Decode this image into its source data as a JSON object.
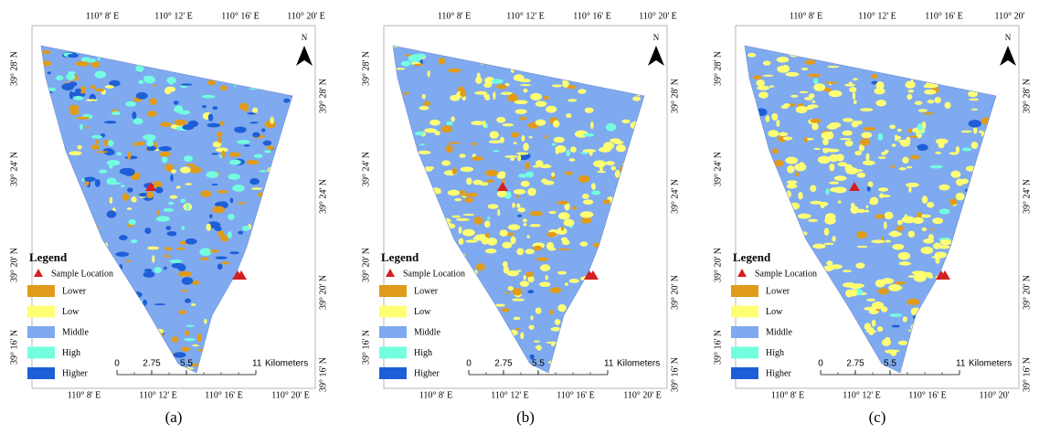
{
  "panels": [
    {
      "caption": "(a)",
      "top_labels": [
        "110° 8' E",
        "110° 12' E",
        "110° 16' E",
        "110° 20' E"
      ],
      "bottom_labels": [
        "110° 8' E",
        "110° 12' E",
        "110° 16' E",
        "110° 20' E"
      ],
      "left_labels": [
        "39° 28' N",
        "39° 24' N",
        "39° 20' N",
        "39° 16' N"
      ],
      "right_labels": [
        "39° 28' N",
        "39° 24' N",
        "39° 20' N",
        "39° 16' N"
      ]
    },
    {
      "caption": "(b)",
      "top_labels": [
        "110° 8' E",
        "110° 12' E",
        "110° 16' E",
        "110° 20' E"
      ],
      "bottom_labels": [
        "110° 8' E",
        "110° 12' E",
        "110° 16' E",
        "110° 20' E"
      ],
      "left_labels": [
        "39° 28' N",
        "39° 24' N",
        "39° 20' N",
        "39° 16' N"
      ],
      "right_labels": [
        "39° 28' N",
        "39° 24' N",
        "39° 20' N",
        "39° 16' N"
      ]
    },
    {
      "caption": "(c)",
      "top_labels": [
        "110° 8' E",
        "110° 12' E",
        "110° 16' E",
        "110° 20'"
      ],
      "bottom_labels": [
        "110° 8' E",
        "110° 12' E",
        "110° 16' E",
        "110° 20'"
      ],
      "left_labels": [
        "39° 28' N",
        "39° 24' N",
        "39° 20' N",
        "39° 16' N"
      ],
      "right_labels": [
        "39° 28' N",
        "39° 24' N",
        "39° 20' N",
        "39° 16' N"
      ]
    }
  ],
  "north": "N",
  "legend": {
    "title": "Legend",
    "sample": "Sample Location",
    "sample_color": "#d42020",
    "items": [
      {
        "label": "Lower",
        "color": "#e09b1a"
      },
      {
        "label": "Low",
        "color": "#ffff73"
      },
      {
        "label": "Middle",
        "color": "#7faaf0"
      },
      {
        "label": "High",
        "color": "#73ffdf"
      },
      {
        "label": "Higher",
        "color": "#1e5fd8"
      }
    ]
  },
  "scale_bar": {
    "ticks": [
      0,
      2.75,
      5.5,
      11
    ],
    "unit": "Kilometers"
  }
}
